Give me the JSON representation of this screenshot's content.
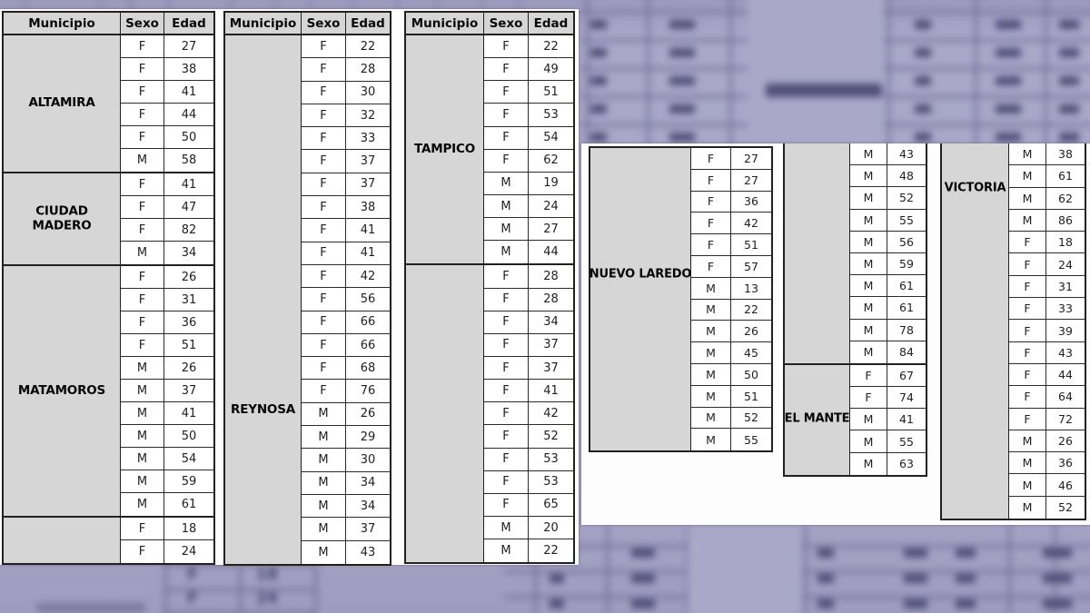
{
  "columns": [
    "Municipio",
    "Sexo",
    "Edad"
  ],
  "tables": [
    {
      "id": "left-1",
      "groups": [
        {
          "municipio": "ALTAMIRA",
          "rows": [
            [
              "F",
              "27"
            ],
            [
              "F",
              "38"
            ],
            [
              "F",
              "41"
            ],
            [
              "F",
              "44"
            ],
            [
              "F",
              "50"
            ],
            [
              "M",
              "58"
            ]
          ]
        },
        {
          "municipio": "CIUDAD MADERO",
          "rows": [
            [
              "F",
              "41"
            ],
            [
              "F",
              "47"
            ],
            [
              "F",
              "82"
            ],
            [
              "M",
              "34"
            ]
          ]
        },
        {
          "municipio": "MATAMOROS",
          "rows": [
            [
              "F",
              "26"
            ],
            [
              "F",
              "31"
            ],
            [
              "F",
              "36"
            ],
            [
              "F",
              "51"
            ],
            [
              "M",
              "26"
            ],
            [
              "M",
              "37"
            ],
            [
              "M",
              "41"
            ],
            [
              "M",
              "50"
            ],
            [
              "M",
              "54"
            ],
            [
              "M",
              "59"
            ],
            [
              "M",
              "61"
            ]
          ]
        },
        {
          "municipio": "",
          "rows": [
            [
              "F",
              "18"
            ],
            [
              "F",
              "24"
            ]
          ]
        }
      ]
    },
    {
      "id": "left-2",
      "groups": [
        {
          "municipio": "REYNOSA",
          "rows": [
            [
              "F",
              "22"
            ],
            [
              "F",
              "28"
            ],
            [
              "F",
              "30"
            ],
            [
              "F",
              "32"
            ],
            [
              "F",
              "33"
            ],
            [
              "F",
              "37"
            ],
            [
              "F",
              "37"
            ],
            [
              "F",
              "38"
            ],
            [
              "F",
              "41"
            ],
            [
              "F",
              "41"
            ],
            [
              "F",
              "42"
            ],
            [
              "F",
              "56"
            ],
            [
              "F",
              "66"
            ],
            [
              "F",
              "66"
            ],
            [
              "F",
              "68"
            ],
            [
              "F",
              "76"
            ],
            [
              "M",
              "26"
            ],
            [
              "M",
              "29"
            ],
            [
              "M",
              "30"
            ],
            [
              "M",
              "34"
            ],
            [
              "M",
              "34"
            ],
            [
              "M",
              "37"
            ],
            [
              "M",
              "43"
            ]
          ]
        }
      ]
    },
    {
      "id": "left-3",
      "groups": [
        {
          "municipio": "TAMPICO",
          "rows": [
            [
              "F",
              "22"
            ],
            [
              "F",
              "49"
            ],
            [
              "F",
              "51"
            ],
            [
              "F",
              "53"
            ],
            [
              "F",
              "54"
            ],
            [
              "F",
              "62"
            ],
            [
              "M",
              "19"
            ],
            [
              "M",
              "24"
            ],
            [
              "M",
              "27"
            ],
            [
              "M",
              "44"
            ]
          ]
        },
        {
          "municipio": "",
          "rows": [
            [
              "F",
              "28"
            ],
            [
              "F",
              "28"
            ],
            [
              "F",
              "34"
            ],
            [
              "F",
              "37"
            ],
            [
              "F",
              "37"
            ],
            [
              "F",
              "41"
            ],
            [
              "F",
              "42"
            ],
            [
              "F",
              "52"
            ],
            [
              "F",
              "53"
            ],
            [
              "F",
              "53"
            ],
            [
              "F",
              "65"
            ],
            [
              "M",
              "20"
            ],
            [
              "M",
              "22"
            ]
          ]
        }
      ]
    },
    {
      "id": "right-1",
      "groups": [
        {
          "municipio": "NUEVO LAREDO",
          "rows": [
            [
              "F",
              "27"
            ],
            [
              "F",
              "27"
            ],
            [
              "F",
              "36"
            ],
            [
              "F",
              "42"
            ],
            [
              "F",
              "51"
            ],
            [
              "F",
              "57"
            ],
            [
              "M",
              "13"
            ],
            [
              "M",
              "22"
            ],
            [
              "M",
              "26"
            ],
            [
              "M",
              "45"
            ],
            [
              "M",
              "50"
            ],
            [
              "M",
              "51"
            ],
            [
              "M",
              "52"
            ],
            [
              "M",
              "55"
            ]
          ]
        }
      ]
    },
    {
      "id": "right-2",
      "groups": [
        {
          "municipio": "",
          "rows": [
            [
              "M",
              "43"
            ],
            [
              "M",
              "48"
            ],
            [
              "M",
              "52"
            ],
            [
              "M",
              "55"
            ],
            [
              "M",
              "56"
            ],
            [
              "M",
              "59"
            ],
            [
              "M",
              "61"
            ],
            [
              "M",
              "61"
            ],
            [
              "M",
              "78"
            ],
            [
              "M",
              "84"
            ]
          ]
        },
        {
          "municipio": "EL MANTE",
          "rows": [
            [
              "F",
              "67"
            ],
            [
              "F",
              "74"
            ],
            [
              "M",
              "41"
            ],
            [
              "M",
              "55"
            ],
            [
              "M",
              "63"
            ]
          ]
        }
      ]
    },
    {
      "id": "right-3",
      "groups": [
        {
          "municipio": "VICTORIA",
          "rows": [
            [
              "M",
              "38"
            ],
            [
              "M",
              "61"
            ],
            [
              "M",
              "62"
            ],
            [
              "M",
              "86"
            ],
            [
              "F",
              "18"
            ],
            [
              "F",
              "24"
            ],
            [
              "F",
              "31"
            ],
            [
              "F",
              "33"
            ],
            [
              "F",
              "39"
            ],
            [
              "F",
              "43"
            ],
            [
              "F",
              "44"
            ],
            [
              "F",
              "64"
            ],
            [
              "F",
              "72"
            ],
            [
              "M",
              "26"
            ],
            [
              "M",
              "36"
            ],
            [
              "M",
              "46"
            ],
            [
              "M",
              "52"
            ]
          ]
        }
      ]
    }
  ],
  "background": {
    "base_color": "#a7a6c6",
    "blurred_rows": [
      {
        "sexo": "F",
        "edad": "18"
      },
      {
        "sexo": "F",
        "edad": "24"
      }
    ]
  }
}
